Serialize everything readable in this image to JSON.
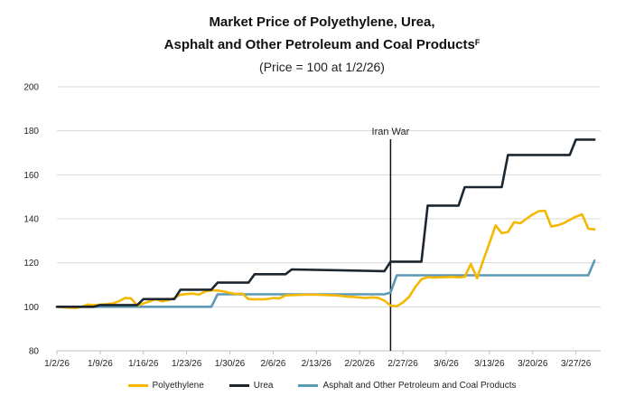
{
  "chart_data": {
    "type": "line",
    "title_line1": "Market Price of Polyethylene, Urea,",
    "title_line2": "Asphalt and Other Petroleum and Coal Products",
    "title_note": "F",
    "subtitle": "(Price = 100 at 1/2/26)",
    "xlabel": "",
    "ylabel": "",
    "x_ticks": [
      "1/2/26",
      "1/9/26",
      "1/16/26",
      "1/23/26",
      "1/30/26",
      "2/6/26",
      "2/13/26",
      "2/20/26",
      "2/27/26",
      "3/6/26",
      "3/13/26",
      "3/20/26",
      "3/27/26"
    ],
    "xlim": [
      0,
      88
    ],
    "ylim": [
      80,
      200
    ],
    "y_ticks": [
      80,
      100,
      120,
      140,
      160,
      180,
      200
    ],
    "grid": "horizontal",
    "legend_position": "bottom",
    "annotations": [
      {
        "label": "Iran War",
        "x": 54
      }
    ],
    "series": [
      {
        "name": "Polyethylene",
        "color": "#f5b800",
        "x": [
          0,
          2,
          3,
          4,
          5,
          6,
          7,
          8,
          9,
          10,
          11,
          12,
          13,
          14,
          15,
          16,
          17,
          18,
          19,
          20,
          21,
          22,
          23,
          24,
          25,
          26,
          27,
          28,
          29,
          30,
          31,
          32,
          33,
          34,
          35,
          36,
          37,
          38,
          39,
          40,
          41,
          42,
          43,
          44,
          45,
          46,
          47,
          48,
          49,
          50,
          51,
          52,
          53,
          54,
          55,
          56,
          57,
          58,
          59,
          60,
          61,
          62,
          63,
          64,
          65,
          66,
          67,
          68,
          69,
          70,
          71,
          72,
          73,
          74,
          75,
          76,
          77,
          78,
          79,
          80,
          81,
          82,
          83,
          84,
          85,
          86,
          87
        ],
        "values": [
          100,
          99.6,
          99.5,
          100,
          101,
          100.8,
          101,
          101.2,
          101.5,
          102.5,
          104,
          103.8,
          100.6,
          101.5,
          102.5,
          103.5,
          102.5,
          103,
          104,
          105.5,
          105.8,
          106,
          105.5,
          107,
          107.5,
          107.4,
          107,
          106.3,
          105.8,
          106,
          103.5,
          103.4,
          103.4,
          103.5,
          104,
          103.8,
          105.2,
          105.3,
          105.4,
          105.5,
          105.5,
          105.5,
          105.4,
          105.3,
          105.2,
          105,
          104.6,
          104.5,
          104.2,
          104,
          104.3,
          104.1,
          102.8,
          100.6,
          100.2,
          102,
          104.5,
          109,
          112.5,
          113.5,
          113.3,
          113.4,
          113.5,
          113.6,
          113.4,
          113.6,
          119.5,
          113,
          121,
          129,
          137,
          133.5,
          134,
          138.5,
          138,
          140,
          142,
          143.5,
          143.7,
          136.5,
          137,
          138,
          139.5,
          141,
          142,
          135.5,
          135.2
        ]
      },
      {
        "name": "Urea",
        "color": "#1c2630",
        "x": [
          0,
          6,
          7,
          13,
          14,
          19,
          20,
          25,
          26,
          31,
          32,
          37,
          38,
          53,
          54,
          59,
          60,
          65,
          66,
          72,
          73,
          78,
          79,
          79.5,
          83,
          84,
          85,
          87
        ],
        "values": [
          100,
          100,
          100.8,
          100.8,
          103.5,
          103.5,
          107.8,
          107.8,
          111,
          111,
          114.8,
          114.8,
          117,
          116.2,
          120.5,
          120.5,
          146,
          146,
          154.4,
          154.4,
          169,
          169,
          169,
          169,
          169,
          176,
          176,
          176
        ]
      },
      {
        "name": "Asphalt and Other Petroleum and Coal Products",
        "color": "#5b9ab5",
        "x": [
          0,
          25,
          26,
          53,
          54,
          55,
          86,
          87
        ],
        "values": [
          100,
          100,
          105.7,
          105.7,
          106.5,
          114.3,
          114.3,
          121
        ]
      }
    ]
  }
}
